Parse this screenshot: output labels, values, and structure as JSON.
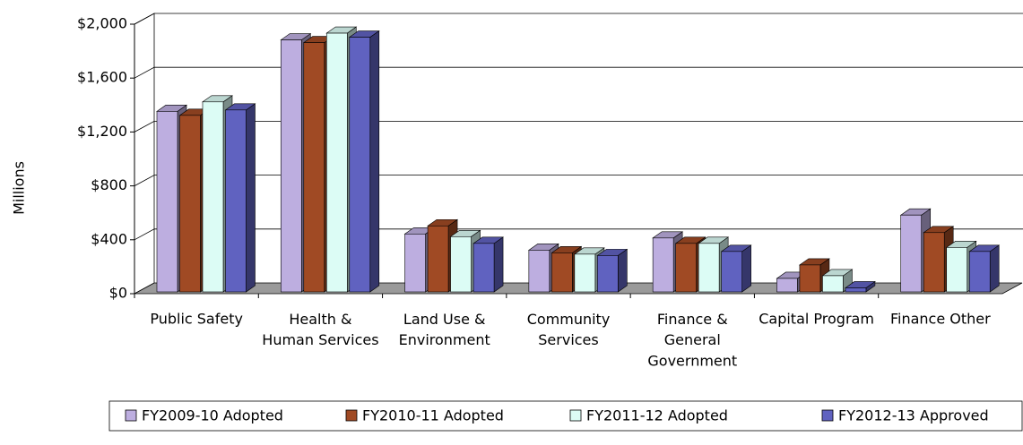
{
  "chart_data": {
    "type": "bar3d",
    "y_label": "Millions",
    "categories": [
      "Public Safety",
      "Health &\nHuman Services",
      "Land Use &\nEnvironment",
      "Community\nServices",
      "Finance &\nGeneral\nGovernment",
      "Capital Program",
      "Finance Other"
    ],
    "series": [
      {
        "name": "FY2009-10 Adopted",
        "color": "#bdaee0",
        "values": [
          1340,
          1870,
          430,
          310,
          400,
          100,
          570
        ]
      },
      {
        "name": "FY2010-11 Adopted",
        "color": "#a04a24",
        "values": [
          1310,
          1850,
          490,
          290,
          360,
          200,
          440
        ]
      },
      {
        "name": "FY2011-12 Adopted",
        "color": "#dcfcf5",
        "values": [
          1410,
          1920,
          410,
          280,
          360,
          120,
          330
        ]
      },
      {
        "name": "FY2012-13 Approved",
        "color": "#6062c0",
        "values": [
          1350,
          1890,
          360,
          270,
          300,
          30,
          300
        ]
      }
    ],
    "ylim": [
      0,
      2000
    ],
    "yticks": [
      {
        "value": 0,
        "label": "$0"
      },
      {
        "value": 400,
        "label": "$400"
      },
      {
        "value": 800,
        "label": "$800"
      },
      {
        "value": 1200,
        "label": "$1,200"
      },
      {
        "value": 1600,
        "label": "$1,600"
      },
      {
        "value": 2000,
        "label": "$2,000"
      }
    ],
    "grid": true,
    "legend": "bottom"
  }
}
